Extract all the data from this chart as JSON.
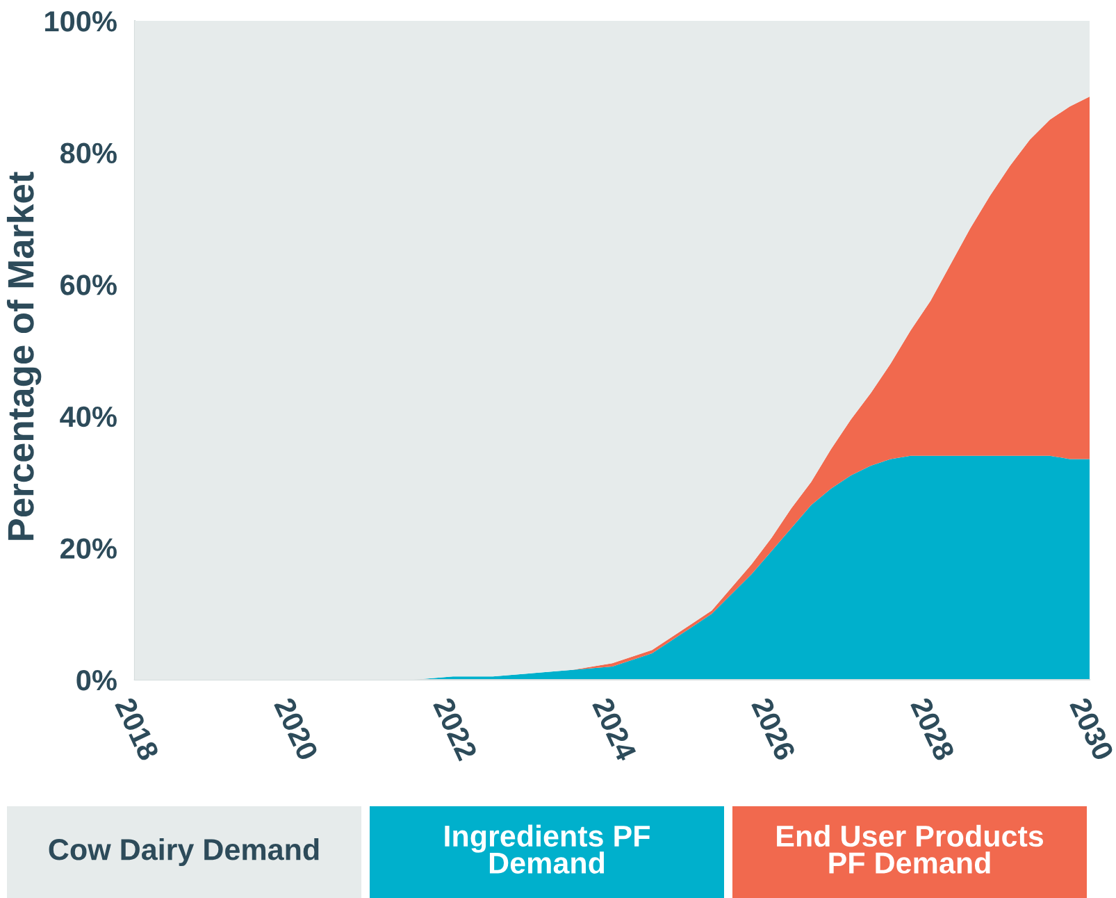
{
  "chart_data": {
    "type": "area",
    "stacked": true,
    "ylabel": "Percentage of Market",
    "legend": "bottom",
    "x": [
      2018,
      2019,
      2020,
      2021,
      2021.5,
      2022,
      2022.5,
      2023,
      2023.5,
      2024,
      2024.5,
      2025,
      2025.25,
      2025.5,
      2025.75,
      2026,
      2026.25,
      2026.5,
      2026.75,
      2027,
      2027.25,
      2027.5,
      2027.75,
      2028,
      2028.25,
      2028.5,
      2028.75,
      2029,
      2029.25,
      2029.5,
      2029.75,
      2030
    ],
    "xlim": [
      2018,
      2030
    ],
    "xticks": [
      2018,
      2020,
      2022,
      2024,
      2026,
      2028,
      2030
    ],
    "ylim": [
      0,
      100
    ],
    "yticks": [
      {
        "value": 0,
        "label": "0%"
      },
      {
        "value": 20,
        "label": "20%"
      },
      {
        "value": 40,
        "label": "40%"
      },
      {
        "value": 60,
        "label": "60%"
      },
      {
        "value": 80,
        "label": "80%"
      },
      {
        "value": 100,
        "label": "100%"
      }
    ],
    "series": [
      {
        "name": "Ingredients PF Demand",
        "color": "#00b0cc",
        "values": [
          0,
          0,
          0,
          0,
          0,
          0.5,
          0.5,
          1,
          1.5,
          2,
          4,
          8,
          10,
          13,
          16,
          19.5,
          23,
          26.5,
          29,
          31,
          32.5,
          33.5,
          34,
          34,
          34,
          34,
          34,
          34,
          34,
          34,
          33.5,
          33.5
        ]
      },
      {
        "name": "End User Products PF Demand",
        "color": "#f1694e",
        "values": [
          0,
          0,
          0,
          0,
          0,
          0,
          0,
          0,
          0,
          0.5,
          0.5,
          0.5,
          0.5,
          1,
          1.5,
          2,
          3,
          3.5,
          6,
          8.5,
          11,
          14.5,
          19,
          23.5,
          29,
          34.5,
          39.5,
          44,
          48,
          51,
          53.5,
          55
        ]
      },
      {
        "name": "Cow Dairy Demand",
        "color": "#e6ebeb",
        "values": [
          100,
          100,
          100,
          100,
          100,
          99.5,
          99.5,
          99,
          98.5,
          97.5,
          95.5,
          91.5,
          89.5,
          86,
          82.5,
          78.5,
          74,
          70,
          65,
          60.5,
          56.5,
          52,
          47,
          42.5,
          37,
          31.5,
          26.5,
          22,
          18,
          15,
          13,
          11.5
        ]
      }
    ]
  }
}
